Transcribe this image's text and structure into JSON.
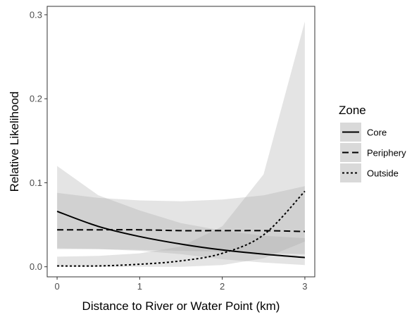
{
  "chart_data": {
    "type": "line",
    "xlabel": "Distance to River or Water Point (km)",
    "ylabel": "Relative Likelihood",
    "xlim": [
      -0.12,
      3.12
    ],
    "ylim": [
      -0.012,
      0.31
    ],
    "x_ticks": [
      0,
      1,
      2,
      3
    ],
    "x_tick_labels": [
      "0",
      "1",
      "2",
      "3"
    ],
    "y_ticks": [
      0.0,
      0.1,
      0.2,
      0.3
    ],
    "y_tick_labels": [
      "0.0",
      "0.1",
      "0.2",
      "0.3"
    ],
    "grid": false,
    "legend": {
      "title": "Zone",
      "position": "right"
    },
    "series": [
      {
        "name": "Core",
        "linetype": "solid",
        "x": [
          0,
          0.5,
          1,
          1.5,
          2,
          2.5,
          3
        ],
        "y": [
          0.066,
          0.048,
          0.036,
          0.027,
          0.02,
          0.015,
          0.011
        ],
        "lower": [
          0.021,
          0.021,
          0.019,
          0.015,
          0.009,
          0.005,
          0.002
        ],
        "upper": [
          0.12,
          0.085,
          0.067,
          0.052,
          0.043,
          0.037,
          0.034
        ]
      },
      {
        "name": "Periphery",
        "linetype": "dashed",
        "x": [
          0,
          0.5,
          1,
          1.5,
          2,
          2.5,
          3
        ],
        "y": [
          0.044,
          0.044,
          0.044,
          0.043,
          0.043,
          0.043,
          0.042
        ],
        "lower": [
          0.022,
          0.021,
          0.02,
          0.019,
          0.018,
          0.016,
          0.015
        ],
        "upper": [
          0.088,
          0.082,
          0.079,
          0.078,
          0.08,
          0.085,
          0.096
        ]
      },
      {
        "name": "Outside",
        "linetype": "dotted",
        "x": [
          0,
          0.5,
          1,
          1.5,
          2,
          2.5,
          3
        ],
        "y": [
          0.001,
          0.001,
          0.003,
          0.007,
          0.016,
          0.038,
          0.09
        ],
        "lower": [
          0.0,
          0.0,
          0.0,
          0.0,
          0.002,
          0.01,
          0.03
        ],
        "upper": [
          0.012,
          0.013,
          0.016,
          0.024,
          0.048,
          0.11,
          0.292
        ]
      }
    ]
  }
}
